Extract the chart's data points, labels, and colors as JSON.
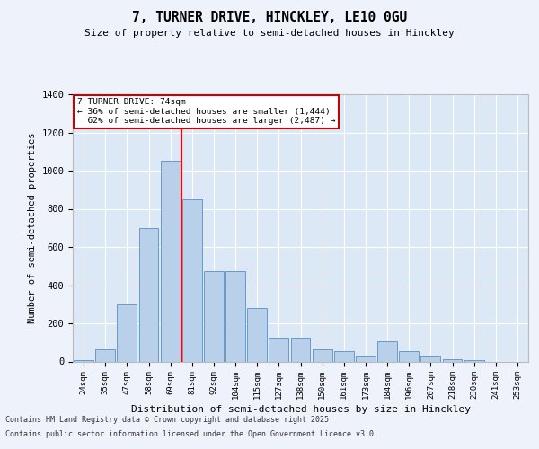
{
  "title1": "7, TURNER DRIVE, HINCKLEY, LE10 0GU",
  "title2": "Size of property relative to semi-detached houses in Hinckley",
  "xlabel": "Distribution of semi-detached houses by size in Hinckley",
  "ylabel": "Number of semi-detached properties",
  "categories": [
    "24sqm",
    "35sqm",
    "47sqm",
    "58sqm",
    "69sqm",
    "81sqm",
    "92sqm",
    "104sqm",
    "115sqm",
    "127sqm",
    "138sqm",
    "150sqm",
    "161sqm",
    "173sqm",
    "184sqm",
    "196sqm",
    "207sqm",
    "218sqm",
    "230sqm",
    "241sqm",
    "253sqm"
  ],
  "values": [
    5,
    65,
    300,
    700,
    1050,
    850,
    475,
    475,
    280,
    125,
    125,
    65,
    55,
    30,
    105,
    55,
    30,
    10,
    5,
    0,
    0
  ],
  "bar_color": "#b8d0ea",
  "bar_edge_color": "#6699cc",
  "red_line_x": 4.5,
  "red_line_label": "7 TURNER DRIVE: 74sqm",
  "pct_smaller": "36%",
  "n_smaller": "1,444",
  "pct_larger": "62%",
  "n_larger": "2,487",
  "ylim": [
    0,
    1400
  ],
  "yticks": [
    0,
    200,
    400,
    600,
    800,
    1000,
    1200,
    1400
  ],
  "bg_color": "#eef2fb",
  "plot_bg_color": "#dce8f5",
  "grid_color": "#ffffff",
  "footer_line1": "Contains HM Land Registry data © Crown copyright and database right 2025.",
  "footer_line2": "Contains public sector information licensed under the Open Government Licence v3.0.",
  "annotation_box_color": "#cc0000"
}
